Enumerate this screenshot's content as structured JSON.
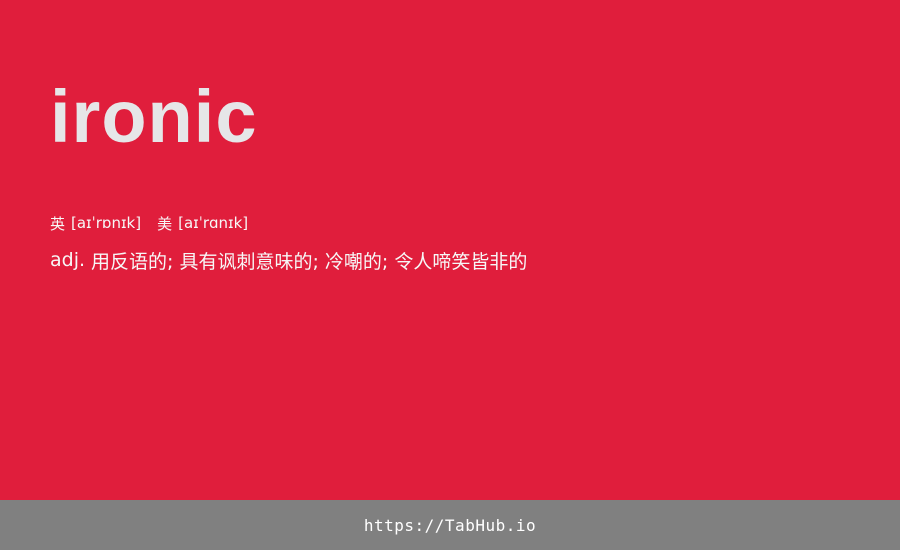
{
  "card": {
    "word": "ironic",
    "phonetics": [
      {
        "region": "英",
        "ipa": "[aɪˈrɒnɪk]"
      },
      {
        "region": "美",
        "ipa": "[aɪˈrɑnɪk]"
      }
    ],
    "definition": {
      "pos": "adj.",
      "meaning": "用反语的; 具有讽刺意味的; 冷嘲的; 令人啼笑皆非的"
    }
  },
  "footer": {
    "url": "https://TabHub.io"
  },
  "colors": {
    "background": "#e01e3c",
    "word": "#e6e6e8",
    "text": "#f7f7f7",
    "footer_background": "#808080"
  }
}
